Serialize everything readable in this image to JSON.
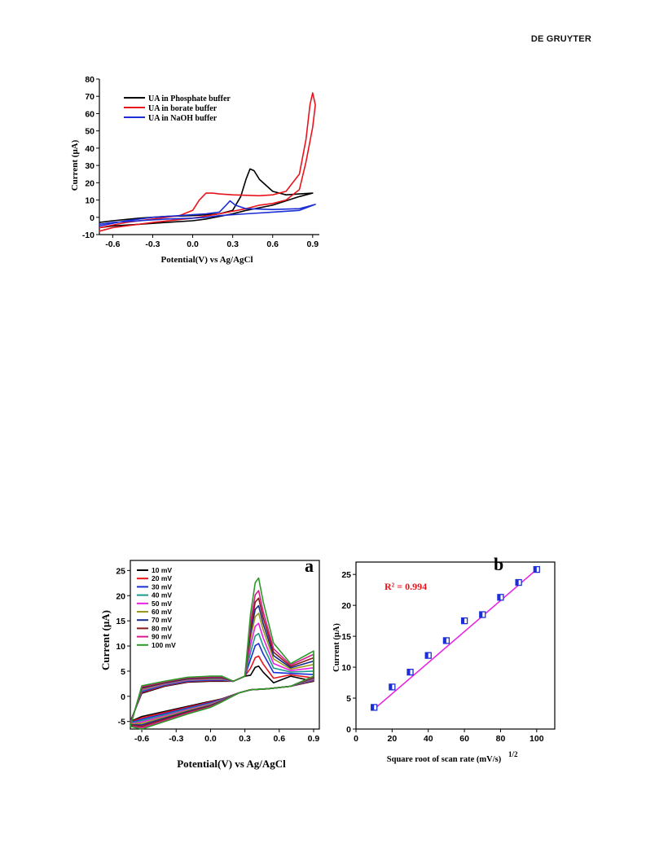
{
  "header": {
    "publisher": "DE GRUYTER"
  },
  "figures": {
    "top": {
      "ylabel": "Current  (μA)",
      "xlabel": "Potential(V) vs Ag/AgCl"
    },
    "bottom_a": {
      "panel_label": "a",
      "ylabel": "Current (μA)",
      "xlabel": "Potential(V) vs Ag/AgCl"
    },
    "bottom_b": {
      "panel_label": "b",
      "ylabel": "Current (μA)",
      "xlabel": "Square root of scan rate (mV/s)",
      "xlabel_sup": "1/2",
      "r2": "R² = 0.994"
    }
  },
  "chart_data": [
    {
      "type": "line",
      "ylabel": "Current  (μA)",
      "xlabel": "Potential(V) vs Ag/AgCl",
      "xlim": [
        -0.7,
        0.95
      ],
      "ylim": [
        -10,
        80
      ],
      "xticks": [
        "-0.6",
        "-0.3",
        "0.0",
        "0.3",
        "0.6",
        "0.9"
      ],
      "yticks": [
        "-10",
        "0",
        "10",
        "20",
        "30",
        "40",
        "50",
        "60",
        "70",
        "80"
      ],
      "legend_position": "top-left",
      "series": [
        {
          "name": "UA in Phosphate buffer",
          "color": "#000000",
          "x": [
            -0.7,
            -0.6,
            -0.4,
            -0.2,
            0.0,
            0.2,
            0.3,
            0.36,
            0.4,
            0.43,
            0.46,
            0.5,
            0.6,
            0.7,
            0.8,
            0.9,
            0.8,
            0.6,
            0.4,
            0.3,
            0.2,
            0.1,
            0.0,
            -0.2,
            -0.4,
            -0.6,
            -0.7
          ],
          "y": [
            -3,
            -2,
            -0.5,
            0.5,
            1,
            2,
            4,
            12,
            22,
            28,
            27,
            22,
            15,
            13,
            13.5,
            14,
            12,
            7,
            4,
            2,
            0.5,
            -1,
            -2,
            -3,
            -4,
            -5,
            -6
          ]
        },
        {
          "name": "UA in borate buffer",
          "color": "#e8141c",
          "x": [
            -0.7,
            -0.5,
            -0.3,
            -0.1,
            0.0,
            0.05,
            0.1,
            0.15,
            0.2,
            0.3,
            0.5,
            0.6,
            0.7,
            0.8,
            0.85,
            0.88,
            0.9,
            0.92,
            0.9,
            0.85,
            0.8,
            0.7,
            0.6,
            0.5,
            0.4,
            0.2,
            0.0,
            -0.3,
            -0.6,
            -0.7
          ],
          "y": [
            -6,
            -3,
            -1,
            1,
            4,
            10,
            14,
            14,
            13.5,
            13,
            12.5,
            13,
            15,
            25,
            45,
            65,
            72,
            65,
            52,
            32,
            16,
            10,
            8,
            7,
            5,
            2,
            -0.5,
            -3,
            -6,
            -8
          ]
        },
        {
          "name": "UA in NaOH buffer",
          "color": "#1c2fd6",
          "x": [
            -0.7,
            -0.5,
            -0.3,
            -0.1,
            0.0,
            0.1,
            0.2,
            0.25,
            0.28,
            0.32,
            0.4,
            0.6,
            0.8,
            0.92,
            0.8,
            0.6,
            0.4,
            0.2,
            0.1,
            0.0,
            -0.2,
            -0.4,
            -0.6,
            -0.7
          ],
          "y": [
            -5,
            -2,
            0,
            1,
            1.5,
            2,
            3,
            7,
            9.5,
            7,
            5,
            4.5,
            5,
            7.5,
            4,
            3,
            2,
            1,
            0,
            -0.5,
            -1,
            -2,
            -3,
            -4
          ]
        }
      ]
    },
    {
      "type": "line",
      "panel": "a",
      "ylabel": "Current (μA)",
      "xlabel": "Potential(V) vs Ag/AgCl",
      "xlim": [
        -0.7,
        0.95
      ],
      "ylim": [
        -6.5,
        27
      ],
      "xticks": [
        "-0.6",
        "-0.3",
        "0.0",
        "0.3",
        "0.6",
        "0.9"
      ],
      "yticks": [
        "-5",
        "0",
        "5",
        "10",
        "15",
        "20",
        "25"
      ],
      "legend_position": "top-left",
      "series": [
        {
          "name": "10 mV",
          "color": "#000000",
          "peak": 6
        },
        {
          "name": "20 mV",
          "color": "#e8141c",
          "peak": 8
        },
        {
          "name": "30 mV",
          "color": "#1c2fd6",
          "peak": 10.5
        },
        {
          "name": "40 mV",
          "color": "#1a9a8a",
          "peak": 12.5
        },
        {
          "name": "50 mV",
          "color": "#e81ee0",
          "peak": 14.5
        },
        {
          "name": "60 mV",
          "color": "#9a9a1a",
          "peak": 16.5
        },
        {
          "name": "70 mV",
          "color": "#1a2a8a",
          "peak": 18
        },
        {
          "name": "80 mV",
          "color": "#8a1a1a",
          "peak": 19.5
        },
        {
          "name": "90 mV",
          "color": "#d81a8a",
          "peak": 21
        },
        {
          "name": "100 mV",
          "color": "#2a9a2a",
          "peak": 23.5
        }
      ]
    },
    {
      "type": "scatter",
      "panel": "b",
      "ylabel": "Current (μA)",
      "xlabel": "Square root of scan rate (mV/s)^1/2",
      "xlim": [
        0,
        110
      ],
      "ylim": [
        0,
        27
      ],
      "xticks": [
        "0",
        "20",
        "40",
        "60",
        "80",
        "100"
      ],
      "yticks": [
        "0",
        "5",
        "10",
        "15",
        "20",
        "25"
      ],
      "annotation": "R² = 0.994",
      "point_color": "#1c2fd6",
      "fit_color": "#e81ee0",
      "fit": {
        "x": [
          10,
          100
        ],
        "y": [
          3.2,
          25.8
        ]
      },
      "x": [
        10,
        20,
        30,
        40,
        50,
        60,
        70,
        80,
        90,
        100
      ],
      "y": [
        3.5,
        6.8,
        9.2,
        11.9,
        14.3,
        17.5,
        18.5,
        21.3,
        23.7,
        25.8
      ]
    }
  ]
}
